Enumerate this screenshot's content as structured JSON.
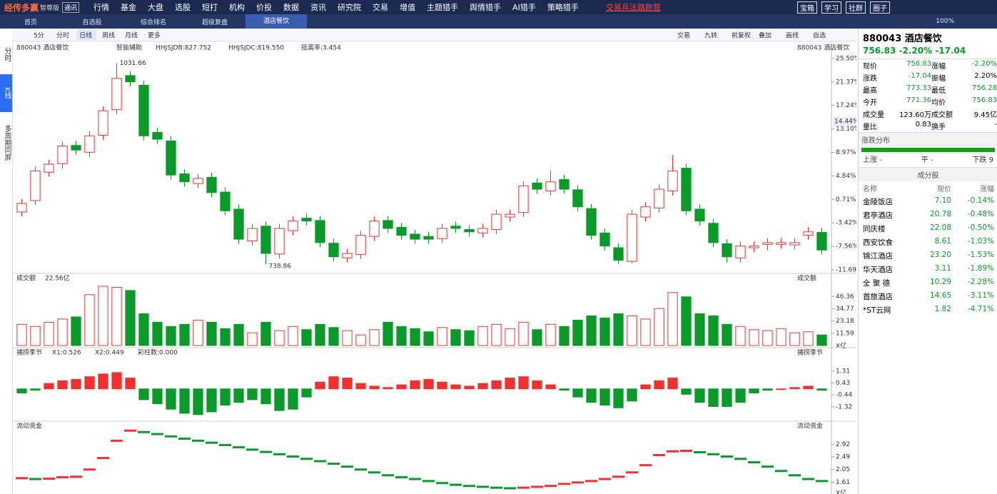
{
  "header": {
    "brand": "经传多赢",
    "edition": "智尊版",
    "badge": "通讯",
    "menu": [
      "行情",
      "基金",
      "大盘",
      "选股",
      "短打",
      "机构",
      "价投",
      "数据",
      "资讯",
      "研究院",
      "交易",
      "增值",
      "主题猎手",
      "舆情猎手",
      "AI猎手",
      "策略猎手"
    ],
    "promo": "交易兵法路跑营",
    "buttons": [
      "宝箱",
      "学习",
      "社群",
      "圈子"
    ]
  },
  "tabs": {
    "items": [
      "首页",
      "自选股",
      "综合排名",
      "超级复盘",
      "酒店餐饮"
    ],
    "zoom": "100%"
  },
  "toolbar": {
    "periods": [
      "5分",
      "分时",
      "日线",
      "周线",
      "月线",
      "更多"
    ],
    "tools": [
      "交易",
      "九转",
      "前复权",
      "叠加",
      "画线",
      "自选"
    ]
  },
  "side_tabs": [
    "分时",
    "K线",
    "多周期同屏"
  ],
  "chart_data": [
    {
      "type": "candlestick",
      "title": "880043 酒店餐饮",
      "assist": "智能辅助",
      "legend": [
        "HHJSJDB:827.752",
        "HHJSJDC:819.550",
        "抵离率:3.454"
      ],
      "open": [
        -1.5,
        0.5,
        5.5,
        7.0,
        10.2,
        9.0,
        12.0,
        16.5,
        22.5,
        20.8,
        12.5,
        11.0,
        5.2,
        3.5,
        4.6,
        2.0,
        -1.0,
        -6.6,
        -4.0,
        -8.9,
        -4.8,
        -2.6,
        -3.0,
        -7.0,
        -9.6,
        -9.0,
        -5.8,
        -3.0,
        -4.2,
        -5.4,
        -5.8,
        -6.2,
        -4.0,
        -4.6,
        -5.2,
        -4.6,
        -2.4,
        -1.6,
        3.6,
        2.2,
        4.2,
        2.4,
        -0.9,
        -5.2,
        -7.8,
        -10.2,
        -2.4,
        -0.8,
        2.2,
        6.2,
        -1.0,
        -3.5,
        -7.1,
        -9.6,
        -7.8,
        -7.2,
        -7.2,
        -7.3,
        -5.6,
        -5.1
      ],
      "high": [
        0.8,
        6.5,
        7.7,
        10.9,
        11.0,
        12.7,
        17.1,
        24.7,
        23.3,
        21.6,
        13.3,
        11.8,
        6.0,
        5.2,
        5.4,
        2.8,
        -0.2,
        -3.6,
        -3.2,
        -3.6,
        -2.3,
        -1.8,
        -2.2,
        -6.2,
        -8.0,
        -4.8,
        -2.3,
        -2.2,
        -3.4,
        -4.6,
        -5.0,
        -3.6,
        -3.2,
        -3.8,
        -3.6,
        -1.1,
        -1.1,
        3.9,
        4.4,
        5.8,
        5.0,
        3.2,
        -0.1,
        -4.4,
        -7.0,
        -1.1,
        0.2,
        3.3,
        8.5,
        7.0,
        -0.2,
        -2.7,
        -6.3,
        -6.7,
        -6.7,
        -6.1,
        -6.1,
        -6.1,
        -4.2,
        -4.3
      ],
      "low": [
        -2.3,
        -0.3,
        4.7,
        6.1,
        8.6,
        8.2,
        11.2,
        15.7,
        20.6,
        11.1,
        10.5,
        4.2,
        3.0,
        2.7,
        1.1,
        -2.1,
        -7.1,
        -7.4,
        -10.7,
        -9.7,
        -5.6,
        -3.9,
        -7.7,
        -10.2,
        -10.4,
        -9.8,
        -6.6,
        -5.2,
        -6.4,
        -7.1,
        -7.1,
        -7.0,
        -5.2,
        -5.8,
        -6.0,
        -5.4,
        -3.2,
        -2.4,
        1.7,
        1.4,
        1.7,
        -1.4,
        -6.4,
        -8.3,
        -10.6,
        -10.5,
        -3.2,
        -1.6,
        1.4,
        -2.1,
        -3.9,
        -7.7,
        -10.4,
        -10.4,
        -8.6,
        -8.3,
        -8.0,
        -8.1,
        -6.4,
        -9.0
      ],
      "close": [
        0.0,
        5.7,
        6.9,
        10.1,
        9.4,
        11.9,
        16.3,
        22.0,
        21.4,
        11.9,
        11.3,
        5.0,
        3.8,
        4.4,
        1.9,
        -1.3,
        -6.3,
        -4.4,
        -8.8,
        -4.4,
        -3.1,
        -3.1,
        -6.9,
        -9.4,
        -8.8,
        -5.6,
        -3.1,
        -4.4,
        -5.6,
        -6.3,
        -6.3,
        -4.4,
        -4.4,
        -5.0,
        -4.4,
        -1.9,
        -1.9,
        3.1,
        2.5,
        3.8,
        2.5,
        -0.6,
        -5.6,
        -7.5,
        -10.0,
        -1.9,
        -0.6,
        2.5,
        5.7,
        -1.3,
        -3.1,
        -6.9,
        -9.4,
        -7.5,
        -7.5,
        -6.9,
        -6.9,
        -6.9,
        -5.0,
        -8.2
      ],
      "ylim": [
        -11.69,
        25.5
      ],
      "yticks": [
        {
          "value": 25.5,
          "label": "25.50%"
        },
        {
          "value": 21.37,
          "label": "21.37%"
        },
        {
          "value": 17.24,
          "label": "17.24%"
        },
        {
          "value": 13.1,
          "label": "13.10%"
        },
        {
          "value": 8.97,
          "label": "8.97%"
        },
        {
          "value": 4.84,
          "label": "4.84%"
        },
        {
          "value": 0.71,
          "label": "0.71%"
        },
        {
          "value": -3.42,
          "label": "-3.42%"
        },
        {
          "value": -7.56,
          "label": "-7.56%"
        },
        {
          "value": -11.69,
          "label": "-11.69%"
        }
      ],
      "current": {
        "value": 14.44,
        "label": "14.44%"
      },
      "high_label": "1031.66",
      "low_label": "738.86"
    },
    {
      "type": "bar",
      "title": "成交额",
      "subtitle": "22.56亿",
      "unit": "X亿",
      "values": [
        20,
        18,
        22,
        25,
        27,
        48,
        56,
        55,
        52,
        30,
        22,
        18,
        20,
        24,
        22,
        16,
        20,
        12,
        22,
        14,
        18,
        15,
        20,
        17,
        14,
        10,
        15,
        22,
        18,
        16,
        13,
        17,
        15,
        14,
        18,
        20,
        16,
        22,
        15,
        20,
        18,
        24,
        28,
        26,
        30,
        28,
        25,
        35,
        50,
        46,
        30,
        28,
        20,
        18,
        15,
        14,
        16,
        12,
        13,
        10
      ],
      "ylim": [
        0,
        58
      ],
      "yticks": [
        11.59,
        23.18,
        34.77,
        46.36
      ]
    },
    {
      "type": "bar",
      "title": "捕捞季节",
      "legend": [
        "X1:0.526",
        "X2:0.449",
        "彩柱数:0.000"
      ],
      "values": [
        -0.3,
        -0.1,
        0.4,
        0.6,
        0.7,
        0.9,
        1.1,
        1.2,
        0.8,
        -0.8,
        -1.1,
        -1.5,
        -1.8,
        -1.9,
        -1.7,
        -1.2,
        -1.0,
        -0.8,
        -1.1,
        -1.6,
        -1.5,
        -0.6,
        0.5,
        0.9,
        0.8,
        0.4,
        0.2,
        0.1,
        0.3,
        0.6,
        0.7,
        0.5,
        0.3,
        0.2,
        0.4,
        0.6,
        0.8,
        0.9,
        0.6,
        0.3,
        -0.1,
        -0.6,
        -1.0,
        -1.2,
        -1.4,
        -0.9,
        0.3,
        0.6,
        0.8,
        -0.4,
        -1.0,
        -1.3,
        -1.3,
        -1.0,
        -0.3,
        -0.1,
        0.0,
        0.1,
        0.2,
        -0.1
      ],
      "ylim": [
        -2.28,
        2.78
      ],
      "yticks": [
        1.31,
        0.43,
        -0.44,
        -1.32
      ]
    },
    {
      "type": "step",
      "title": "流动资金",
      "unit": "X亿",
      "values": [
        1.75,
        1.72,
        1.73,
        1.78,
        1.8,
        2.05,
        2.45,
        3.05,
        3.4,
        3.35,
        3.28,
        3.2,
        3.12,
        3.05,
        2.98,
        2.9,
        2.82,
        2.74,
        2.66,
        2.58,
        2.5,
        2.42,
        2.34,
        2.25,
        2.15,
        2.05,
        1.95,
        1.85,
        1.78,
        1.72,
        1.65,
        1.58,
        1.52,
        1.48,
        1.45,
        1.42,
        1.4,
        1.42,
        1.45,
        1.48,
        1.55,
        1.6,
        1.65,
        1.72,
        1.8,
        1.95,
        2.2,
        2.55,
        2.68,
        2.7,
        2.65,
        2.58,
        2.5,
        2.42,
        2.3,
        2.15,
        2.0,
        1.85,
        1.72,
        1.65
      ],
      "ylim": [
        1.25,
        3.48
      ],
      "yticks": [
        2.92,
        2.49,
        2.05,
        1.61
      ]
    }
  ],
  "quote": {
    "code": "880043 酒店餐饮",
    "price": "756.83",
    "change_pct": "-2.20%",
    "change": "-17.04",
    "rows": [
      [
        "现价",
        "756.83",
        "涨幅",
        "-2.20%"
      ],
      [
        "涨跌",
        "-17.04",
        "振幅",
        "2.20%"
      ],
      [
        "最高",
        "773.33",
        "最低",
        "756.28"
      ],
      [
        "今开",
        "771.36",
        "均价",
        "756.83"
      ],
      [
        "成交量",
        "123.60万",
        "成交额",
        "9.45亿"
      ],
      [
        "量比",
        "0.83",
        "换手",
        "-"
      ]
    ],
    "distribution": {
      "title": "涨跌分布",
      "items": [
        [
          "上涨",
          "-"
        ],
        [
          "平",
          "-"
        ],
        [
          "下跌",
          "9"
        ]
      ]
    }
  },
  "constituents": {
    "title": "成分股",
    "columns": [
      "名称",
      "现价",
      "涨幅"
    ],
    "rows": [
      [
        "金陵饭店",
        "7.10",
        "-0.14%"
      ],
      [
        "君亭酒店",
        "20.78",
        "-0.48%"
      ],
      [
        "同庆楼",
        "22.08",
        "-0.50%"
      ],
      [
        "西安饮食",
        "8.61",
        "-1.03%"
      ],
      [
        "锦江酒店",
        "23.20",
        "-1.53%"
      ],
      [
        "华天酒店",
        "3.11",
        "-1.89%"
      ],
      [
        "全 聚 德",
        "10.29",
        "-2.28%"
      ],
      [
        "首旅酒店",
        "14.65",
        "-3.11%"
      ],
      [
        "*ST云网",
        "1.82",
        "-4.71%"
      ]
    ]
  }
}
